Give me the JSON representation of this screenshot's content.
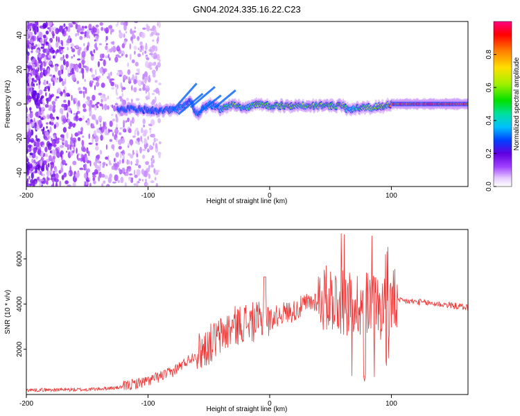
{
  "title": "GN04.2024.335.16.22.C23",
  "chart_data": [
    {
      "type": "heatmap",
      "xlabel": "Height of straight line (km)",
      "ylabel": "Frequency (Hz)",
      "xlim": [
        -200,
        163
      ],
      "ylim": [
        -48,
        48
      ],
      "x_ticks": [
        -200,
        -100,
        0,
        100
      ],
      "x_tick_labels": [
        "-200",
        "-100",
        "0",
        "100"
      ],
      "y_ticks": [
        -40,
        -20,
        0,
        20,
        40
      ],
      "y_tick_labels": [
        "-40",
        "-20",
        "0",
        "20",
        "40"
      ],
      "colorbar": {
        "label": "Normalized spectral amplitude",
        "range": [
          0,
          1
        ],
        "ticks": [
          0.0,
          0.2,
          0.4,
          0.6,
          0.8
        ],
        "tick_labels": [
          "0.0",
          "0.2",
          "0.4",
          "0.6",
          "0.8"
        ]
      },
      "ridge": {
        "x": [
          -125,
          -110,
          -90,
          -75,
          -65,
          -60,
          -50,
          -40,
          -30,
          -20,
          -10,
          0,
          20,
          40,
          60,
          65,
          70,
          85,
          95,
          100,
          163
        ],
        "freq": [
          -3,
          -3,
          -4,
          -3,
          2,
          -6,
          0,
          -3,
          0,
          -3,
          0,
          -1,
          -1,
          -1,
          -1,
          -4,
          -2,
          -2,
          -1,
          0,
          0
        ],
        "amplitude": [
          0.25,
          0.3,
          0.3,
          0.35,
          0.3,
          0.3,
          0.35,
          0.4,
          0.6,
          0.45,
          0.6,
          0.55,
          0.6,
          0.6,
          0.6,
          0.4,
          0.5,
          0.7,
          0.5,
          0.95,
          0.98
        ]
      },
      "grid": false
    },
    {
      "type": "line",
      "xlabel": "Height of straight line (km)",
      "ylabel": "SNR (10 * v/v)",
      "xlim": [
        -200,
        163
      ],
      "ylim": [
        0,
        7300
      ],
      "x_ticks": [
        -200,
        -100,
        0,
        100
      ],
      "x_tick_labels": [
        "-200",
        "-100",
        "0",
        "100"
      ],
      "y_ticks": [
        2000,
        4000,
        6000
      ],
      "y_tick_labels": [
        "2000",
        "4000",
        "6000"
      ],
      "series": [
        {
          "color": "#ee3333",
          "x": [
            -200,
            -150,
            -125,
            -100,
            -80,
            -60,
            -50,
            -40,
            -30,
            -20,
            -10,
            0,
            10,
            20,
            30,
            40,
            50,
            60,
            70,
            80,
            90,
            98,
            105,
            120,
            140,
            163
          ],
          "y": [
            200,
            220,
            300,
            600,
            1000,
            1800,
            2200,
            2600,
            3000,
            3200,
            3200,
            3300,
            3600,
            3700,
            4000,
            4200,
            4300,
            4100,
            4000,
            4100,
            3900,
            4000,
            4150,
            4100,
            4000,
            3850
          ]
        }
      ],
      "grid": false
    }
  ]
}
